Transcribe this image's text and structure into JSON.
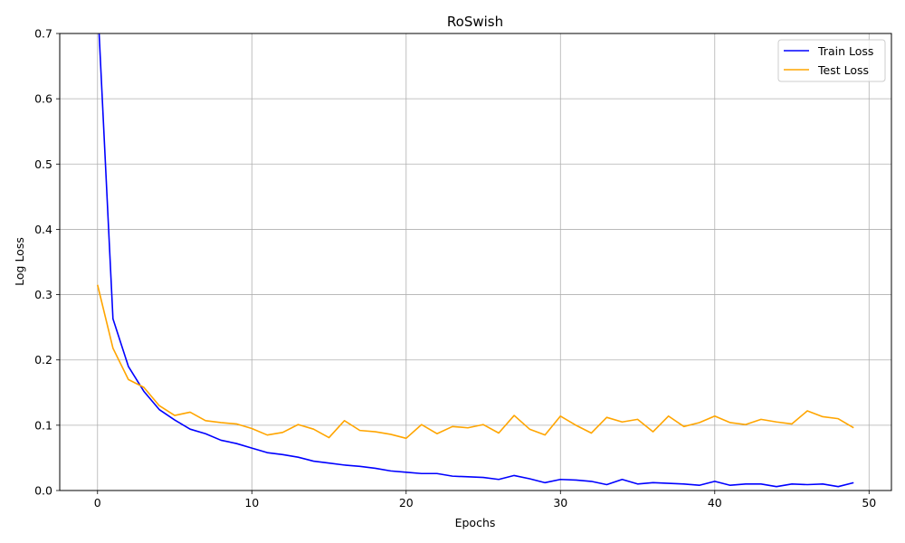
{
  "chart_data": {
    "type": "line",
    "title": "RoSwish",
    "xlabel": "Epochs",
    "ylabel": "Log Loss",
    "xlim": [
      -2.45,
      51.45
    ],
    "ylim": [
      0,
      0.7
    ],
    "xticks": [
      0,
      10,
      20,
      30,
      40,
      50
    ],
    "yticks": [
      0.0,
      0.1,
      0.2,
      0.3,
      0.4,
      0.5,
      0.6,
      0.7
    ],
    "ytick_labels": [
      "0.0",
      "0.1",
      "0.2",
      "0.3",
      "0.4",
      "0.5",
      "0.6",
      "0.7"
    ],
    "grid": true,
    "legend_position": "top-right",
    "x": [
      0,
      1,
      2,
      3,
      4,
      5,
      6,
      7,
      8,
      9,
      10,
      11,
      12,
      13,
      14,
      15,
      16,
      17,
      18,
      19,
      20,
      21,
      22,
      23,
      24,
      25,
      26,
      27,
      28,
      29,
      30,
      31,
      32,
      33,
      34,
      35,
      36,
      37,
      38,
      39,
      40,
      41,
      42,
      43,
      44,
      45,
      46,
      47,
      48,
      49
    ],
    "series": [
      {
        "name": "Train Loss",
        "color": "#0000ff",
        "values": [
          0.75,
          0.263,
          0.19,
          0.152,
          0.124,
          0.108,
          0.094,
          0.087,
          0.077,
          0.072,
          0.065,
          0.058,
          0.055,
          0.051,
          0.045,
          0.042,
          0.039,
          0.037,
          0.034,
          0.03,
          0.028,
          0.026,
          0.026,
          0.022,
          0.021,
          0.02,
          0.017,
          0.023,
          0.018,
          0.012,
          0.017,
          0.016,
          0.014,
          0.009,
          0.017,
          0.01,
          0.012,
          0.011,
          0.01,
          0.008,
          0.014,
          0.008,
          0.01,
          0.01,
          0.006,
          0.01,
          0.009,
          0.01,
          0.006,
          0.012
        ]
      },
      {
        "name": "Test Loss",
        "color": "#ffa500",
        "values": [
          0.315,
          0.218,
          0.17,
          0.158,
          0.13,
          0.115,
          0.12,
          0.107,
          0.104,
          0.102,
          0.095,
          0.085,
          0.089,
          0.101,
          0.094,
          0.081,
          0.107,
          0.092,
          0.09,
          0.086,
          0.08,
          0.101,
          0.087,
          0.098,
          0.096,
          0.101,
          0.088,
          0.115,
          0.094,
          0.085,
          0.114,
          0.1,
          0.088,
          0.112,
          0.105,
          0.109,
          0.09,
          0.114,
          0.098,
          0.104,
          0.114,
          0.104,
          0.101,
          0.109,
          0.105,
          0.102,
          0.122,
          0.113,
          0.11,
          0.096
        ]
      }
    ]
  }
}
